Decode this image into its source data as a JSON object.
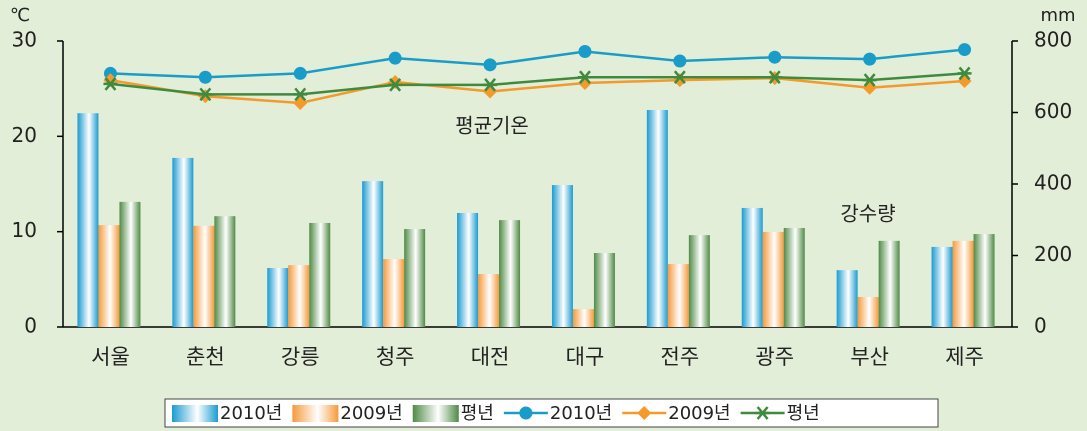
{
  "chart_data": {
    "type": "bar",
    "categories": [
      "서울",
      "춘천",
      "강릉",
      "청주",
      "대전",
      "대구",
      "전주",
      "광주",
      "부산",
      "제주"
    ],
    "ylabel": "℃",
    "y2label": "mm",
    "ylim": [
      0,
      30
    ],
    "yticks": [
      0,
      10,
      20,
      30
    ],
    "y2lim": [
      0,
      800
    ],
    "y2ticks": [
      0,
      200,
      400,
      600,
      800
    ],
    "annotations": [
      "평균기온",
      "강수량"
    ],
    "series": [
      {
        "name": "2010년",
        "type": "bar",
        "axis": "y2",
        "color": "#1a9bd0",
        "values": [
          598,
          473,
          165,
          408,
          319,
          397,
          607,
          333,
          159,
          224
        ]
      },
      {
        "name": "2009년",
        "type": "bar",
        "axis": "y2",
        "color": "#f59a3c",
        "values": [
          285,
          283,
          173,
          190,
          148,
          50,
          176,
          266,
          84,
          241
        ]
      },
      {
        "name": "평년",
        "type": "bar",
        "axis": "y2",
        "color": "#4f8a45",
        "values": [
          350,
          310,
          291,
          274,
          299,
          207,
          257,
          277,
          241,
          260
        ]
      },
      {
        "name": "2010년",
        "type": "line",
        "marker": "circle",
        "color": "#1a9cc9",
        "values": [
          26.6,
          26.2,
          26.6,
          28.2,
          27.5,
          28.9,
          27.9,
          28.3,
          28.1,
          29.1
        ]
      },
      {
        "name": "2009년",
        "type": "line",
        "marker": "diamond",
        "color": "#f39a2a",
        "values": [
          25.9,
          24.2,
          23.5,
          25.7,
          24.7,
          25.6,
          25.9,
          26.1,
          25.1,
          25.8
        ]
      },
      {
        "name": "평년",
        "type": "line",
        "marker": "star",
        "color": "#3f8a3f",
        "values": [
          25.5,
          24.4,
          24.4,
          25.4,
          25.4,
          26.2,
          26.2,
          26.2,
          25.9,
          26.6
        ]
      }
    ]
  }
}
